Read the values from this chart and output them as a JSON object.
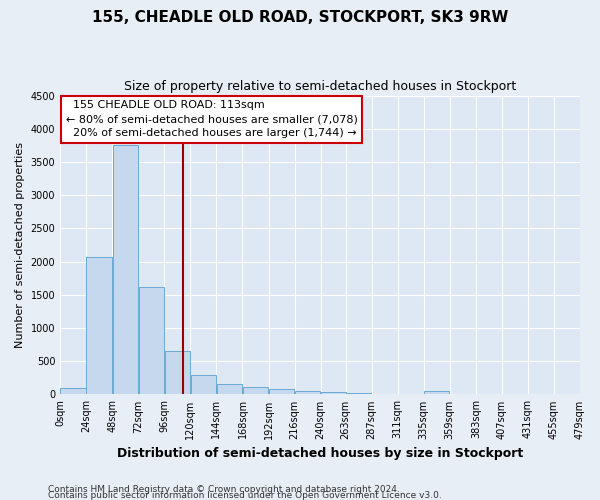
{
  "title": "155, CHEADLE OLD ROAD, STOCKPORT, SK3 9RW",
  "subtitle": "Size of property relative to semi-detached houses in Stockport",
  "xlabel": "Distribution of semi-detached houses by size in Stockport",
  "ylabel": "Number of semi-detached properties",
  "footnote1": "Contains HM Land Registry data © Crown copyright and database right 2024.",
  "footnote2": "Contains public sector information licensed under the Open Government Licence v3.0.",
  "bar_left_edges": [
    0,
    24,
    48,
    72,
    96,
    120,
    144,
    168,
    192,
    216,
    240,
    263,
    287,
    311,
    335,
    359,
    383,
    407,
    431,
    455
  ],
  "bar_heights": [
    100,
    2075,
    3750,
    1625,
    650,
    300,
    160,
    110,
    80,
    55,
    35,
    20,
    10,
    0,
    50,
    0,
    0,
    0,
    0,
    0
  ],
  "bin_width": 24,
  "bar_color": "#c5d8ee",
  "bar_edge_color": "#6aaad4",
  "property_size": 113,
  "vline_color": "#990000",
  "annotation_text": "  155 CHEADLE OLD ROAD: 113sqm\n← 80% of semi-detached houses are smaller (7,078)\n  20% of semi-detached houses are larger (1,744) →",
  "annotation_box_color": "#ffffff",
  "annotation_box_edge_color": "#cc0000",
  "ylim": [
    0,
    4500
  ],
  "xlim": [
    0,
    479
  ],
  "yticks": [
    0,
    500,
    1000,
    1500,
    2000,
    2500,
    3000,
    3500,
    4000,
    4500
  ],
  "xtick_labels": [
    "0sqm",
    "24sqm",
    "48sqm",
    "72sqm",
    "96sqm",
    "120sqm",
    "144sqm",
    "168sqm",
    "192sqm",
    "216sqm",
    "240sqm",
    "263sqm",
    "287sqm",
    "311sqm",
    "335sqm",
    "359sqm",
    "383sqm",
    "407sqm",
    "431sqm",
    "455sqm",
    "479sqm"
  ],
  "xtick_positions": [
    0,
    24,
    48,
    72,
    96,
    120,
    144,
    168,
    192,
    216,
    240,
    263,
    287,
    311,
    335,
    359,
    383,
    407,
    431,
    455,
    479
  ],
  "background_color": "#e8eef5",
  "plot_background_color": "#dde8f4",
  "grid_color": "#ffffff",
  "title_fontsize": 11,
  "subtitle_fontsize": 9,
  "ylabel_fontsize": 8,
  "xlabel_fontsize": 9,
  "tick_fontsize": 7,
  "annotation_fontsize": 8,
  "footnote_fontsize": 6.5
}
